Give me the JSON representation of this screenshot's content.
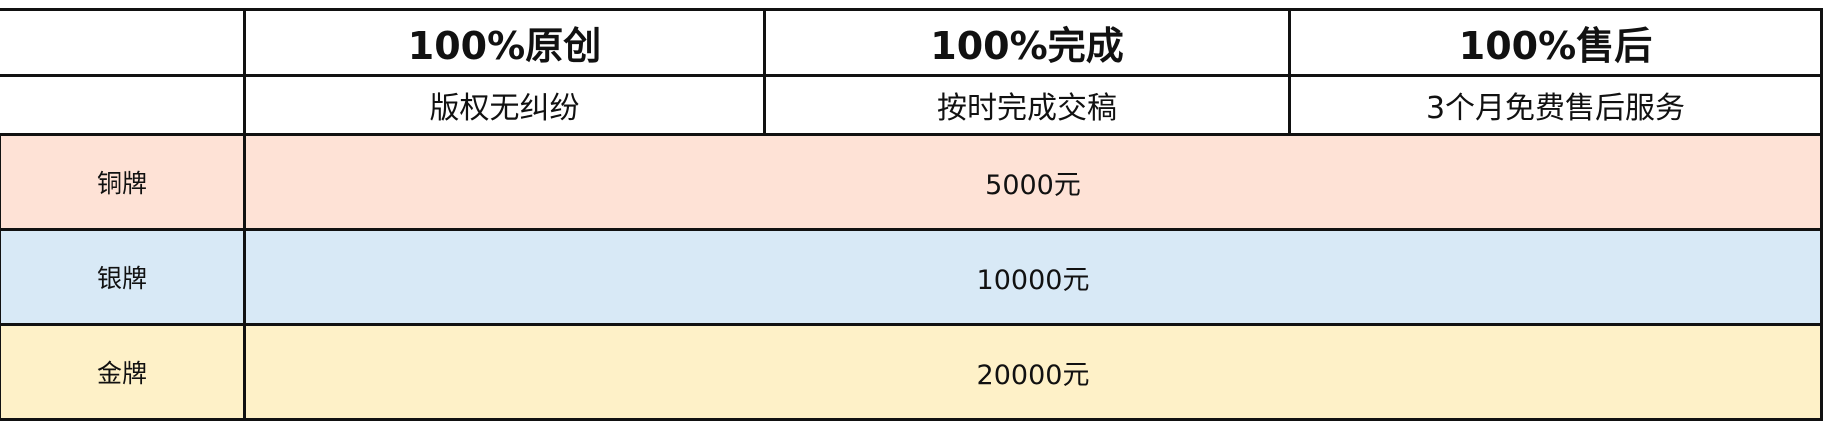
{
  "features": [
    {
      "title": "100%原创",
      "subtitle": "版权无纠纷"
    },
    {
      "title": "100%完成",
      "subtitle": "按时完成交稿"
    },
    {
      "title": "100%售后",
      "subtitle": "3个月免费售后服务"
    }
  ],
  "tiers": [
    {
      "name": "铜牌",
      "price": "5000元",
      "color": "#FEE2D6"
    },
    {
      "name": "银牌",
      "price": "10000元",
      "color": "#D8E9F6"
    },
    {
      "name": "金牌",
      "price": "20000元",
      "color": "#FEF1C8"
    }
  ]
}
